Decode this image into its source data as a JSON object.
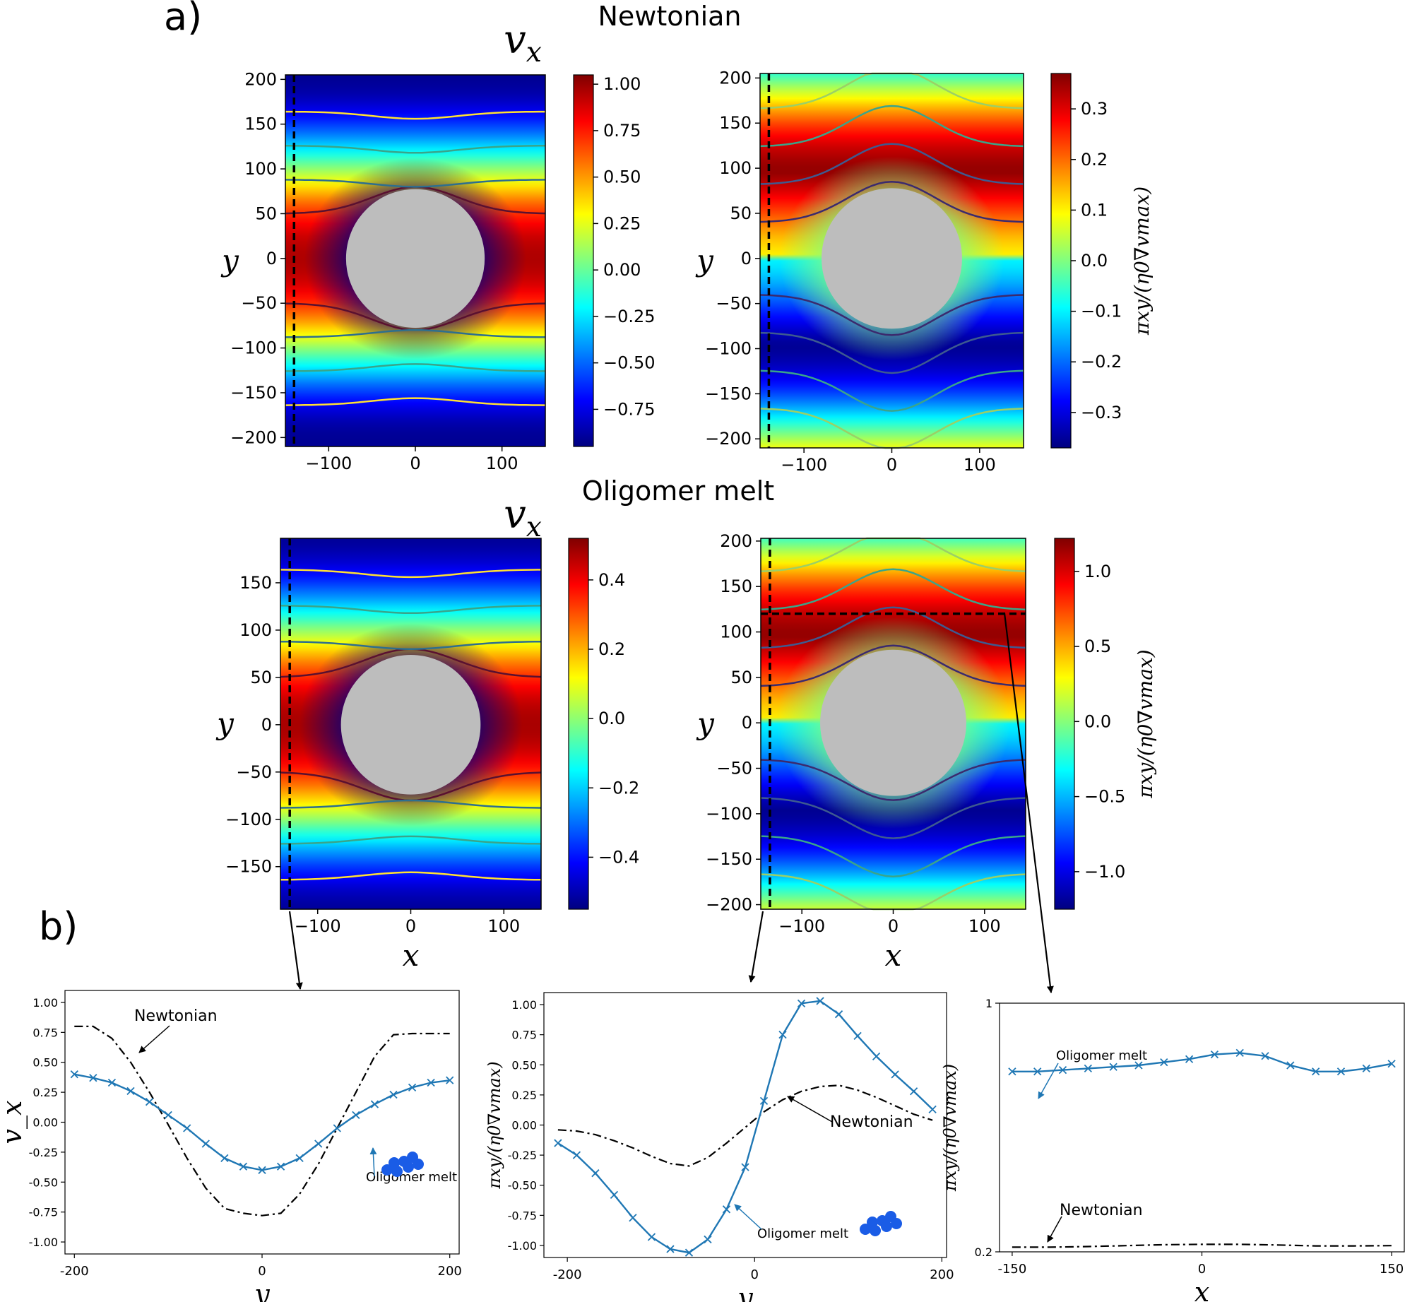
{
  "panel_a_label": "a)",
  "panel_b_label": "b)",
  "row_titles": [
    "Newtonian",
    "Oligomer melt"
  ],
  "colormap": "jet",
  "colors": {
    "obstacle": "#bdbdbd",
    "newtonian_line": "#000000",
    "oligomer_line": "#1f77b4"
  },
  "heatmaps": [
    {
      "id": "newt-vx",
      "title": "v_x",
      "colorbar_label": "",
      "xlim": [
        -150,
        150
      ],
      "ylim": [
        -210,
        205
      ],
      "xticks": [
        -100,
        0,
        100
      ],
      "yticks": [
        -200,
        -150,
        -100,
        -50,
        0,
        50,
        100,
        150,
        200
      ],
      "clim": [
        -0.95,
        1.05
      ],
      "cticks": [
        -0.75,
        -0.5,
        -0.25,
        0.0,
        0.25,
        0.5,
        0.75,
        1.0
      ],
      "cdec": 2,
      "obstacle_radius": 80,
      "cut": "vertical at x = -140",
      "xlabel": "",
      "ylabel": "y"
    },
    {
      "id": "newt-pi",
      "title": "",
      "colorbar_label": "πxy/(η0∇vmax)",
      "xlim": [
        -150,
        150
      ],
      "ylim": [
        -210,
        205
      ],
      "xticks": [
        -100,
        0,
        100
      ],
      "yticks": [
        -200,
        -150,
        -100,
        -50,
        0,
        50,
        100,
        150,
        200
      ],
      "clim": [
        -0.37,
        0.37
      ],
      "cticks": [
        -0.3,
        -0.2,
        -0.1,
        0.0,
        0.1,
        0.2,
        0.3
      ],
      "cdec": 1,
      "obstacle_radius": 80,
      "cut": "vertical at x = -140",
      "xlabel": "",
      "ylabel": "y"
    },
    {
      "id": "olig-vx",
      "title": "v_x",
      "colorbar_label": "",
      "xlim": [
        -140,
        140
      ],
      "ylim": [
        -195,
        197
      ],
      "xticks": [
        -100,
        0,
        100
      ],
      "yticks": [
        -150,
        -100,
        -50,
        0,
        50,
        100,
        150
      ],
      "clim": [
        -0.55,
        0.52
      ],
      "cticks": [
        -0.4,
        -0.2,
        0.0,
        0.2,
        0.4
      ],
      "cdec": 1,
      "obstacle_radius": 75,
      "cut": "vertical at x = -135",
      "xlabel": "x",
      "ylabel": "y"
    },
    {
      "id": "olig-pi",
      "title": "",
      "colorbar_label": "πxy/(η0∇vmax)",
      "xlim": [
        -145,
        145
      ],
      "ylim": [
        -205,
        203
      ],
      "xticks": [
        -100,
        0,
        100
      ],
      "yticks": [
        -200,
        -150,
        -100,
        -50,
        0,
        50,
        100,
        150,
        200
      ],
      "clim": [
        -1.25,
        1.22
      ],
      "cticks": [
        -1.0,
        -0.5,
        0.0,
        0.5,
        1.0
      ],
      "cdec": 1,
      "obstacle_radius": 80,
      "cut": "vertical at x = -140 and horizontal at y = 120",
      "xlabel": "x",
      "ylabel": "y"
    }
  ],
  "chart_data": [
    {
      "type": "line",
      "title": "",
      "xlabel": "y",
      "ylabel": "v_x",
      "xlim": [
        -210,
        210
      ],
      "ylim": [
        -1.1,
        1.1
      ],
      "xticks": [
        -200,
        0,
        200
      ],
      "yticks": [
        -1.0,
        -0.75,
        -0.5,
        -0.25,
        0.0,
        0.25,
        0.5,
        0.75,
        1.0
      ],
      "series": [
        {
          "name": "Newtonian",
          "style": "dashdot",
          "x": [
            -200,
            -180,
            -160,
            -140,
            -120,
            -100,
            -80,
            -60,
            -40,
            -20,
            0,
            20,
            40,
            60,
            80,
            100,
            120,
            140,
            160,
            180,
            200
          ],
          "y": [
            0.8,
            0.8,
            0.7,
            0.5,
            0.25,
            -0.02,
            -0.3,
            -0.55,
            -0.72,
            -0.76,
            -0.78,
            -0.76,
            -0.6,
            -0.35,
            -0.05,
            0.25,
            0.55,
            0.73,
            0.74,
            0.74,
            0.74
          ]
        },
        {
          "name": "Oligomer melt",
          "style": "x-marker",
          "x": [
            -200,
            -180,
            -160,
            -140,
            -120,
            -100,
            -80,
            -60,
            -40,
            -20,
            0,
            20,
            40,
            60,
            80,
            100,
            120,
            140,
            160,
            180,
            200
          ],
          "y": [
            0.4,
            0.37,
            0.33,
            0.26,
            0.17,
            0.06,
            -0.05,
            -0.18,
            -0.3,
            -0.37,
            -0.4,
            -0.37,
            -0.3,
            -0.18,
            -0.05,
            0.06,
            0.15,
            0.23,
            0.29,
            0.33,
            0.35
          ]
        }
      ],
      "annotations": [
        {
          "text": "Newtonian"
        },
        {
          "text": "Oligomer melt"
        }
      ]
    },
    {
      "type": "line",
      "title": "",
      "xlabel": "y",
      "ylabel": "πxy/(η0∇vmax)",
      "xlim": [
        -225,
        205
      ],
      "ylim": [
        -1.1,
        1.1
      ],
      "xticks": [
        -200,
        0,
        200
      ],
      "yticks": [
        -1.0,
        -0.75,
        -0.5,
        -0.25,
        0.0,
        0.25,
        0.5,
        0.75,
        1.0
      ],
      "series": [
        {
          "name": "Newtonian",
          "style": "dashdot",
          "x": [
            -210,
            -190,
            -170,
            -150,
            -130,
            -110,
            -90,
            -70,
            -50,
            -30,
            -10,
            10,
            30,
            50,
            70,
            90,
            110,
            130,
            150,
            170,
            190
          ],
          "y": [
            -0.04,
            -0.05,
            -0.08,
            -0.13,
            -0.19,
            -0.26,
            -0.32,
            -0.34,
            -0.27,
            -0.15,
            -0.02,
            0.11,
            0.21,
            0.28,
            0.32,
            0.33,
            0.29,
            0.23,
            0.16,
            0.09,
            0.04
          ]
        },
        {
          "name": "Oligomer melt",
          "style": "x-marker",
          "x": [
            -210,
            -190,
            -170,
            -150,
            -130,
            -110,
            -90,
            -70,
            -50,
            -30,
            -10,
            10,
            30,
            50,
            70,
            90,
            110,
            130,
            150,
            170,
            190
          ],
          "y": [
            -0.15,
            -0.25,
            -0.4,
            -0.58,
            -0.77,
            -0.93,
            -1.03,
            -1.06,
            -0.95,
            -0.7,
            -0.35,
            0.2,
            0.75,
            1.01,
            1.03,
            0.92,
            0.74,
            0.57,
            0.42,
            0.28,
            0.13
          ]
        }
      ],
      "annotations": [
        {
          "text": "Newtonian"
        },
        {
          "text": "Oligomer melt"
        }
      ]
    },
    {
      "type": "line",
      "title": "",
      "xlabel": "x",
      "ylabel": "πxy/(η0∇vmax)",
      "xlim": [
        -160,
        160
      ],
      "ylim": [
        0.2,
        1.0
      ],
      "xticks": [
        -150,
        0,
        150
      ],
      "yticks": [
        0.2,
        1.0
      ],
      "series": [
        {
          "name": "Newtonian",
          "style": "dashdot",
          "x": [
            -150,
            -120,
            -90,
            -60,
            -30,
            0,
            30,
            60,
            90,
            120,
            150
          ],
          "y": [
            0.215,
            0.215,
            0.217,
            0.22,
            0.223,
            0.224,
            0.224,
            0.222,
            0.219,
            0.219,
            0.22
          ]
        },
        {
          "name": "Oligomer melt",
          "style": "x-marker",
          "x": [
            -150,
            -130,
            -110,
            -90,
            -70,
            -50,
            -30,
            -10,
            10,
            30,
            50,
            70,
            90,
            110,
            130,
            150
          ],
          "y": [
            0.78,
            0.78,
            0.785,
            0.79,
            0.795,
            0.8,
            0.81,
            0.82,
            0.835,
            0.84,
            0.83,
            0.8,
            0.78,
            0.78,
            0.79,
            0.805
          ]
        }
      ],
      "annotations": [
        {
          "text": "Oligomer melt"
        },
        {
          "text": "Newtonian"
        }
      ]
    }
  ]
}
